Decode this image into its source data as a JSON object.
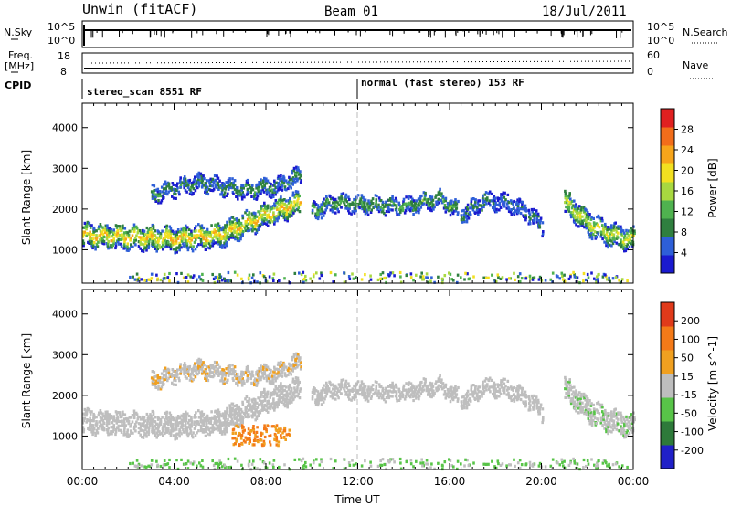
{
  "header": {
    "station": "Unwin (fitACF)",
    "beam": "Beam 01",
    "date": "18/Jul/2011"
  },
  "aux_panels": {
    "nsky_label": "N.Sky",
    "nsearch_label": "N.Search",
    "freq_label_line1": "Freq.",
    "freq_label_line2": "[MHz]",
    "nave_label": "Nave",
    "cpid_label": "CPID",
    "noise_ticks": [
      "10^5",
      "10^0"
    ],
    "freq_ticks": [
      "18",
      "8"
    ],
    "nave_ticks": [
      "60",
      "0"
    ],
    "cpid_segments": [
      {
        "label": "stereo_scan 8551 RF",
        "start_hour": 0,
        "end_hour": 12
      },
      {
        "label": "normal (fast stereo) 153 RF",
        "start_hour": 12,
        "end_hour": 24
      }
    ]
  },
  "chart_data": [
    {
      "type": "heatmap",
      "panel": "power",
      "xlabel": "",
      "ylabel": "Slant Range [km]",
      "xlim": [
        0,
        24
      ],
      "ylim": [
        180,
        4600
      ],
      "yticks": [
        1000,
        2000,
        3000,
        4000
      ],
      "colorbar": {
        "label": "Power [dB]",
        "range": [
          0,
          31
        ],
        "ticks": [
          "4",
          "8",
          "12",
          "16",
          "20",
          "24",
          "28"
        ],
        "colors": [
          "#1a1acf",
          "#2e5fd8",
          "#2f7f3f",
          "#4fb24f",
          "#a8d840",
          "#f2e020",
          "#f7a51a",
          "#f26d1a",
          "#e02020"
        ]
      },
      "echo_bands": [
        {
          "name": "main",
          "x": [
            0,
            2,
            4,
            6,
            8,
            9.5
          ],
          "range_km": [
            1400,
            1350,
            1300,
            1400,
            1900,
            2200
          ],
          "level": 20
        },
        {
          "name": "upper",
          "x": [
            3,
            5,
            7,
            8.5,
            9.5
          ],
          "range_km": [
            2400,
            2700,
            2500,
            2600,
            2900
          ],
          "level": 8
        },
        {
          "name": "midday",
          "x": [
            10,
            11,
            12.5,
            14,
            15.5,
            16.3
          ],
          "range_km": [
            2000,
            2200,
            2150,
            2100,
            2300,
            2000
          ],
          "level": 10
        },
        {
          "name": "afternoon arc",
          "x": [
            16.5,
            17.5,
            18.5,
            19.5,
            20
          ],
          "range_km": [
            1900,
            2250,
            2200,
            1900,
            1600
          ],
          "level": 6
        },
        {
          "name": "evening",
          "x": [
            21,
            22,
            23,
            24
          ],
          "range_km": [
            2200,
            1700,
            1400,
            1300
          ],
          "level": 16
        }
      ]
    },
    {
      "type": "heatmap",
      "panel": "velocity",
      "xlabel": "Time UT",
      "ylabel": "Slant Range [km]",
      "xlim": [
        0,
        24
      ],
      "ylim": [
        180,
        4600
      ],
      "yticks": [
        1000,
        2000,
        3000,
        4000
      ],
      "xticks": [
        "00:00",
        "04:00",
        "08:00",
        "12:00",
        "16:00",
        "20:00",
        "00:00"
      ],
      "colorbar": {
        "label": "Velocity [m s^-1]",
        "range": [
          -250,
          250
        ],
        "ticks": [
          "200",
          "100",
          "50",
          "15",
          "-15",
          "-50",
          "-100",
          "-200"
        ],
        "colors": [
          "#2020c8",
          "#2e7a3a",
          "#58c448",
          "#bebebe",
          "#f0a020",
          "#f47a18",
          "#e03a1a"
        ]
      }
    }
  ]
}
